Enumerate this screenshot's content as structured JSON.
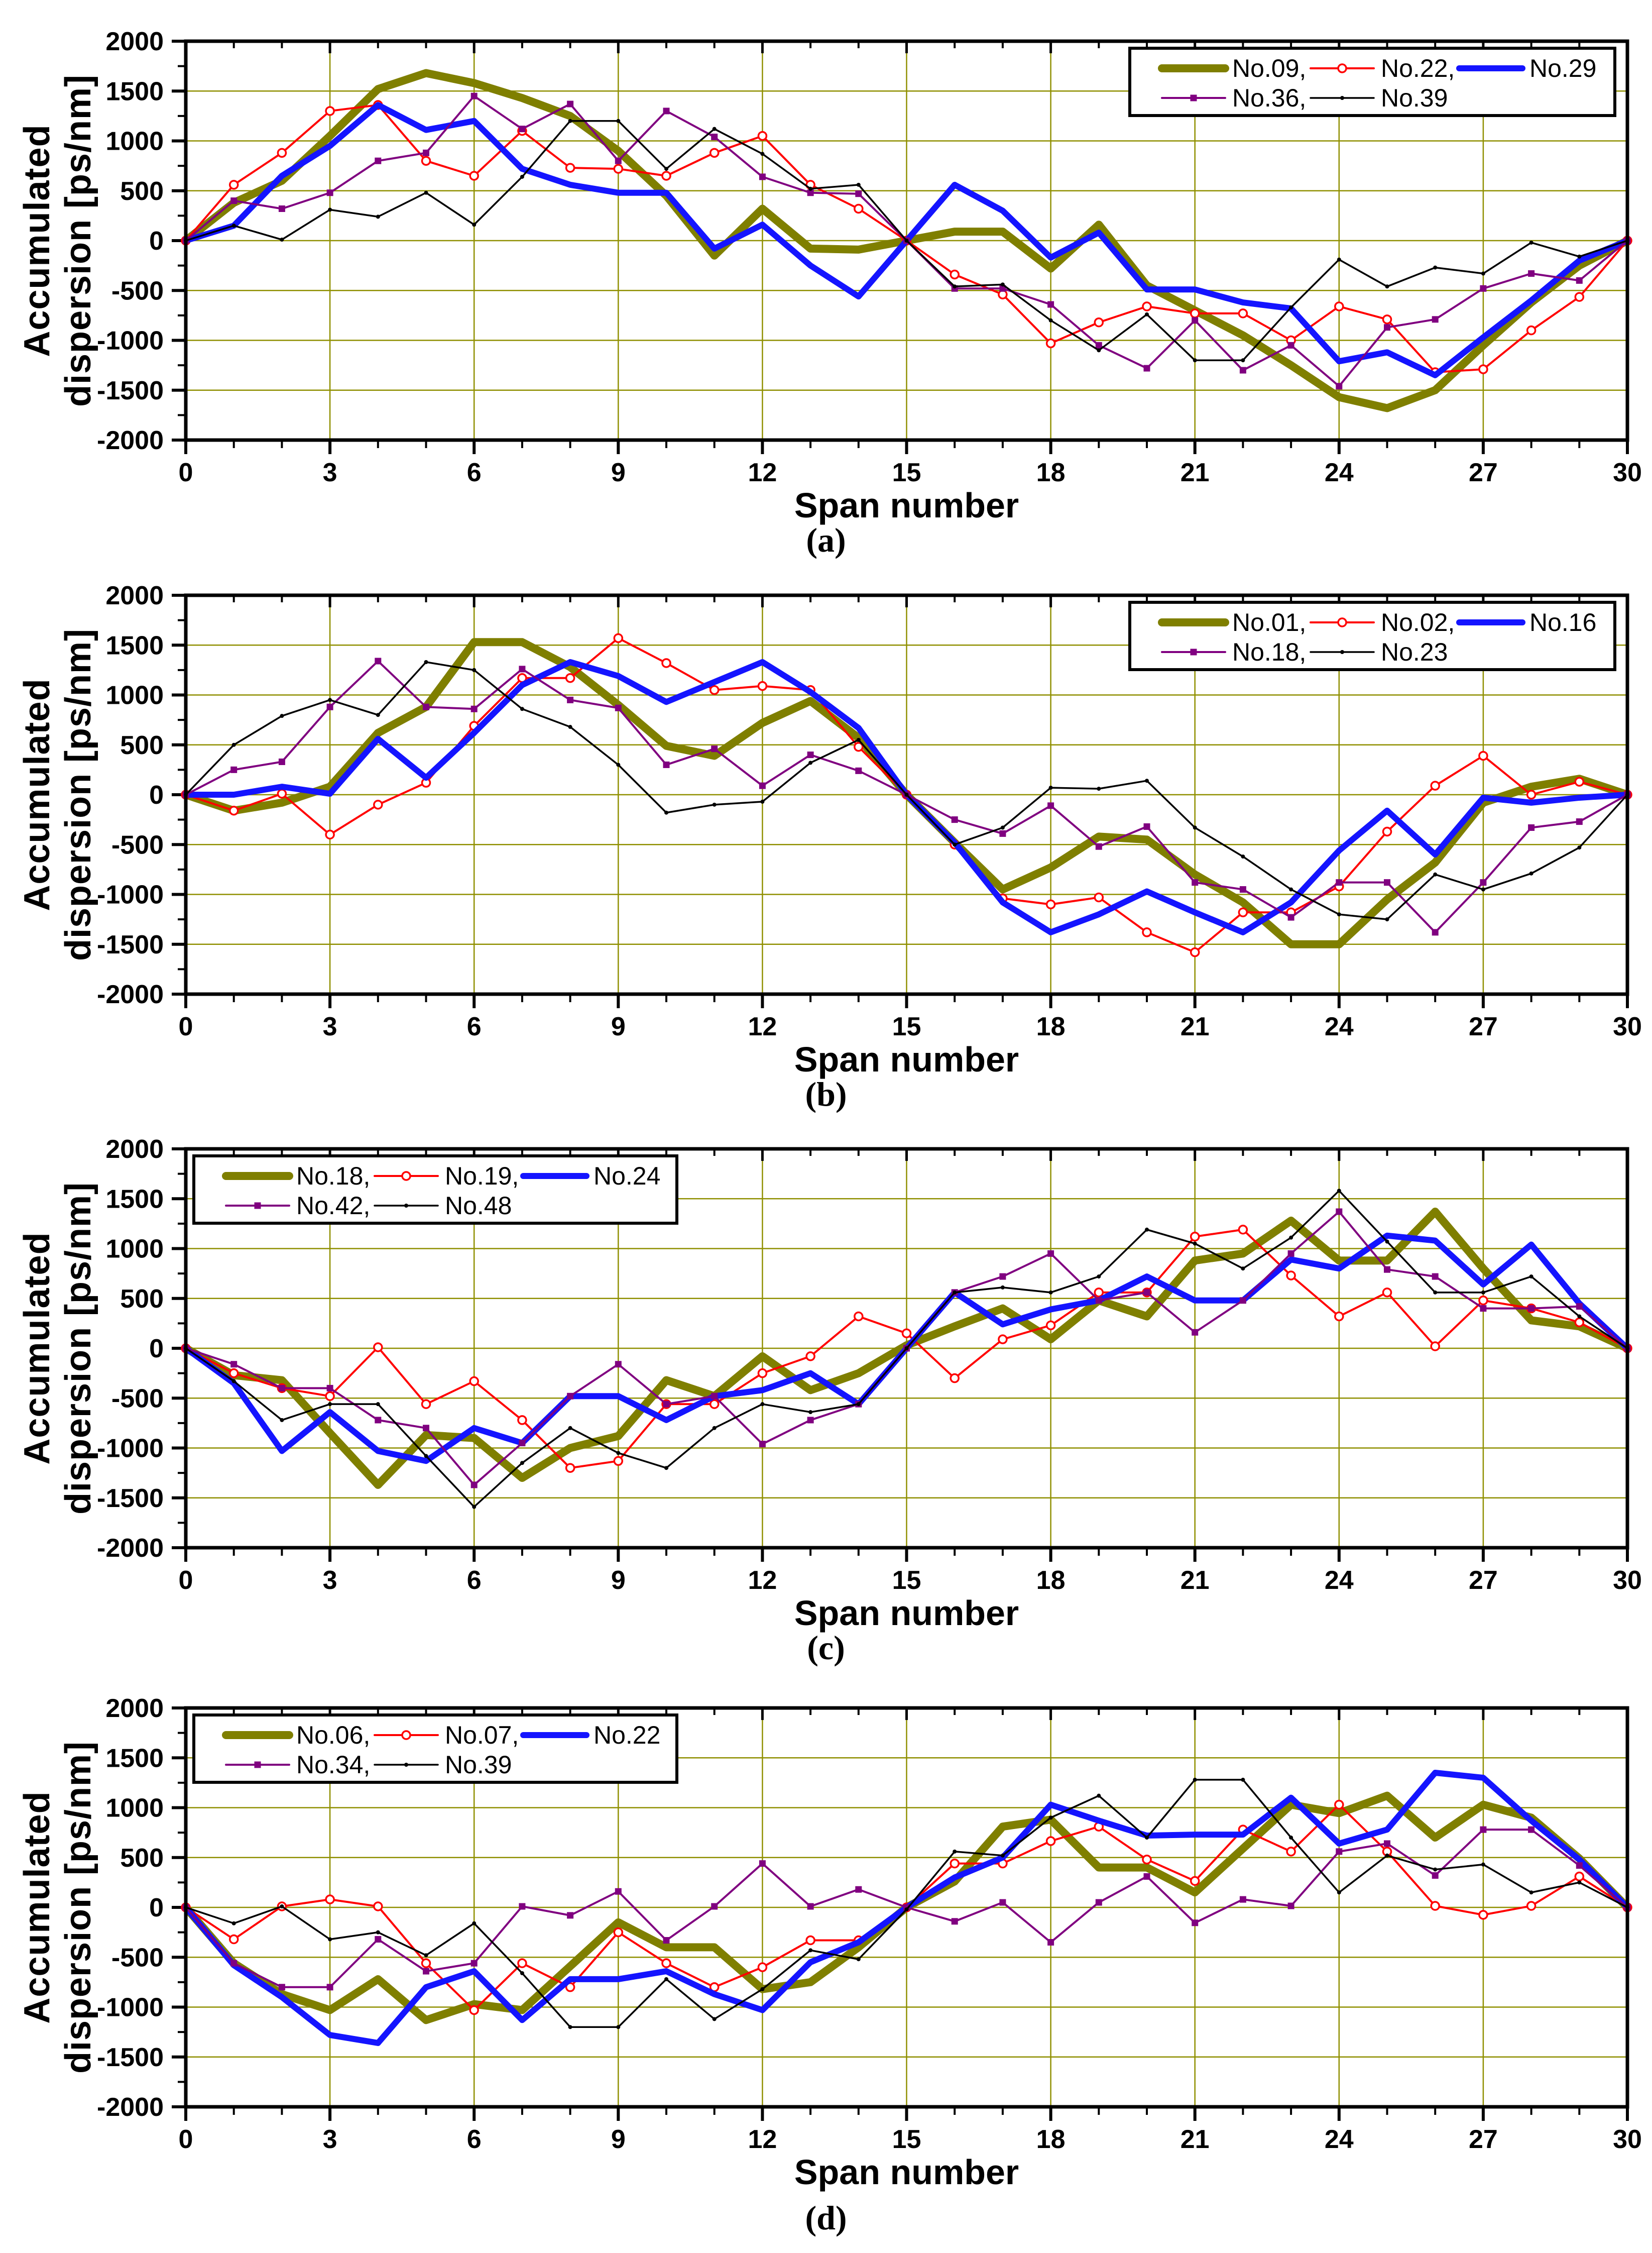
{
  "figure": {
    "ylabel_line1": "Accumulated",
    "ylabel_line2": "dispersion [ps/nm]",
    "xlabel": "Span number",
    "grid_color": "#8f8f00",
    "frame_color": "#000000",
    "background": "#ffffff"
  },
  "chart_data": [
    {
      "id": "a",
      "type": "line",
      "caption": "(a)",
      "xlabel": "Span number",
      "ylabel": "Accumulated dispersion [ps/nm]",
      "xlim": [
        0,
        30
      ],
      "ylim": [
        -2000,
        2000
      ],
      "x_major_step": 3,
      "y_tick_step": 500,
      "grid": true,
      "legend_position": "top-right",
      "x": [
        0,
        1,
        2,
        3,
        4,
        5,
        6,
        7,
        8,
        9,
        10,
        11,
        12,
        13,
        14,
        15,
        16,
        17,
        18,
        19,
        20,
        21,
        22,
        23,
        24,
        25,
        26,
        27,
        28,
        29,
        30
      ],
      "series": [
        {
          "name": "No.09",
          "label": "No.09,",
          "color": "#7f7f00",
          "width": 16,
          "marker": "none",
          "values": [
            0,
            380,
            600,
            1050,
            1520,
            1680,
            1580,
            1430,
            1250,
            900,
            450,
            -150,
            320,
            -80,
            -90,
            0,
            90,
            90,
            -280,
            160,
            -450,
            -700,
            -950,
            -1250,
            -1570,
            -1680,
            -1500,
            -1050,
            -620,
            -250,
            0
          ]
        },
        {
          "name": "No.22",
          "label": "No.22,",
          "color": "#ff0000",
          "width": 4,
          "marker": "open-circle",
          "values": [
            0,
            560,
            880,
            1300,
            1360,
            800,
            650,
            1100,
            730,
            720,
            650,
            880,
            1050,
            560,
            320,
            0,
            -340,
            -540,
            -1030,
            -820,
            -660,
            -730,
            -730,
            -1000,
            -660,
            -790,
            -1320,
            -1290,
            -900,
            -565,
            0
          ]
        },
        {
          "name": "No.29",
          "label": "No.29",
          "color": "#1414ff",
          "width": 12,
          "marker": "none",
          "values": [
            0,
            150,
            650,
            950,
            1360,
            1110,
            1200,
            720,
            560,
            480,
            480,
            -80,
            160,
            -250,
            -560,
            0,
            560,
            300,
            -170,
            80,
            -490,
            -490,
            -620,
            -680,
            -1210,
            -1120,
            -1350,
            -970,
            -600,
            -200,
            0
          ]
        },
        {
          "name": "No.36",
          "label": "No.36,",
          "color": "#800080",
          "width": 4,
          "marker": "filled-square",
          "values": [
            0,
            400,
            320,
            480,
            800,
            880,
            1450,
            1120,
            1370,
            800,
            1300,
            1040,
            640,
            480,
            470,
            0,
            -480,
            -480,
            -640,
            -1050,
            -1280,
            -800,
            -1300,
            -1050,
            -1460,
            -870,
            -790,
            -480,
            -330,
            -400,
            0
          ]
        },
        {
          "name": "No.39",
          "label": "No.39",
          "color": "#000000",
          "width": 3.5,
          "marker": "dot",
          "values": [
            0,
            150,
            10,
            310,
            240,
            480,
            160,
            640,
            1200,
            1200,
            720,
            1120,
            870,
            520,
            560,
            0,
            -460,
            -440,
            -800,
            -1100,
            -740,
            -1200,
            -1200,
            -670,
            -190,
            -460,
            -270,
            -330,
            -20,
            -160,
            0
          ]
        }
      ]
    },
    {
      "id": "b",
      "type": "line",
      "caption": "(b)",
      "xlabel": "Span number",
      "ylabel": "Accumulated dispersion [ps/nm]",
      "xlim": [
        0,
        30
      ],
      "ylim": [
        -2000,
        2000
      ],
      "x_major_step": 3,
      "y_tick_step": 500,
      "grid": true,
      "legend_position": "top-right",
      "x": [
        0,
        1,
        2,
        3,
        4,
        5,
        6,
        7,
        8,
        9,
        10,
        11,
        12,
        13,
        14,
        15,
        16,
        17,
        18,
        19,
        20,
        21,
        22,
        23,
        24,
        25,
        26,
        27,
        28,
        29,
        30
      ],
      "series": [
        {
          "name": "No.01",
          "label": "No.01,",
          "color": "#7f7f00",
          "width": 16,
          "marker": "none",
          "values": [
            0,
            -160,
            -80,
            80,
            620,
            880,
            1530,
            1530,
            1280,
            900,
            490,
            390,
            720,
            940,
            570,
            0,
            -480,
            -950,
            -730,
            -420,
            -450,
            -800,
            -1080,
            -1500,
            -1500,
            -1050,
            -680,
            -80,
            80,
            160,
            0
          ]
        },
        {
          "name": "No.02",
          "label": "No.02,",
          "color": "#ff0000",
          "width": 4,
          "marker": "open-circle",
          "values": [
            0,
            -160,
            10,
            -400,
            -100,
            120,
            690,
            1170,
            1170,
            1570,
            1320,
            1050,
            1090,
            1050,
            480,
            0,
            -500,
            -1040,
            -1100,
            -1030,
            -1380,
            -1580,
            -1180,
            -1180,
            -920,
            -370,
            90,
            390,
            0,
            130,
            0
          ]
        },
        {
          "name": "No.16",
          "label": "No.16",
          "color": "#1414ff",
          "width": 12,
          "marker": "none",
          "values": [
            0,
            0,
            80,
            10,
            560,
            170,
            620,
            1100,
            1330,
            1190,
            930,
            1130,
            1330,
            1030,
            670,
            0,
            -480,
            -1080,
            -1380,
            -1200,
            -970,
            -1180,
            -1380,
            -1080,
            -560,
            -160,
            -600,
            -30,
            -80,
            -30,
            0
          ]
        },
        {
          "name": "No.18",
          "label": "No.18,",
          "color": "#800080",
          "width": 4,
          "marker": "filled-square",
          "values": [
            0,
            250,
            330,
            880,
            1340,
            880,
            860,
            1260,
            950,
            870,
            300,
            460,
            90,
            400,
            240,
            0,
            -250,
            -390,
            -110,
            -520,
            -320,
            -880,
            -950,
            -1230,
            -880,
            -880,
            -1380,
            -880,
            -330,
            -270,
            0
          ]
        },
        {
          "name": "No.23",
          "label": "No.23",
          "color": "#000000",
          "width": 3.5,
          "marker": "dot",
          "values": [
            0,
            500,
            790,
            950,
            800,
            1330,
            1250,
            860,
            680,
            300,
            -180,
            -100,
            -70,
            320,
            550,
            0,
            -500,
            -330,
            70,
            60,
            140,
            -330,
            -620,
            -950,
            -1200,
            -1250,
            -800,
            -950,
            -790,
            -530,
            0
          ]
        }
      ]
    },
    {
      "id": "c",
      "type": "line",
      "caption": "(c)",
      "xlabel": "Span number",
      "ylabel": "Accumulated dispersion [ps/nm]",
      "xlim": [
        0,
        30
      ],
      "ylim": [
        -2000,
        2000
      ],
      "x_major_step": 3,
      "y_tick_step": 500,
      "grid": true,
      "legend_position": "top-left",
      "x": [
        0,
        1,
        2,
        3,
        4,
        5,
        6,
        7,
        8,
        9,
        10,
        11,
        12,
        13,
        14,
        15,
        16,
        17,
        18,
        19,
        20,
        21,
        22,
        23,
        24,
        25,
        26,
        27,
        28,
        29,
        30
      ],
      "series": [
        {
          "name": "No.18",
          "label": "No.18,",
          "color": "#7f7f00",
          "width": 16,
          "marker": "none",
          "values": [
            0,
            -270,
            -320,
            -850,
            -1370,
            -870,
            -900,
            -1300,
            -1000,
            -880,
            -320,
            -480,
            -80,
            -420,
            -250,
            30,
            220,
            400,
            90,
            480,
            320,
            880,
            950,
            1280,
            880,
            880,
            1370,
            800,
            280,
            220,
            0
          ]
        },
        {
          "name": "No.19",
          "label": "No.19,",
          "color": "#ff0000",
          "width": 4,
          "marker": "open-circle",
          "values": [
            0,
            -250,
            -400,
            -480,
            10,
            -560,
            -330,
            -720,
            -1200,
            -1130,
            -560,
            -560,
            -250,
            -80,
            320,
            150,
            -300,
            90,
            230,
            560,
            560,
            1120,
            1190,
            730,
            320,
            560,
            20,
            480,
            400,
            260,
            0
          ]
        },
        {
          "name": "No.24",
          "label": "No.24",
          "color": "#1414ff",
          "width": 12,
          "marker": "none",
          "values": [
            0,
            -350,
            -1030,
            -640,
            -1030,
            -1130,
            -800,
            -950,
            -480,
            -480,
            -720,
            -480,
            -420,
            -250,
            -560,
            0,
            560,
            240,
            390,
            480,
            720,
            480,
            480,
            890,
            800,
            1130,
            1080,
            640,
            1040,
            450,
            0
          ]
        },
        {
          "name": "No.42",
          "label": "No.42,",
          "color": "#800080",
          "width": 4,
          "marker": "filled-square",
          "values": [
            0,
            -160,
            -400,
            -400,
            -720,
            -800,
            -1370,
            -950,
            -480,
            -160,
            -560,
            -480,
            -960,
            -720,
            -560,
            0,
            560,
            720,
            950,
            480,
            560,
            160,
            480,
            950,
            1370,
            790,
            720,
            400,
            400,
            420,
            0
          ]
        },
        {
          "name": "No.48",
          "label": "No.48",
          "color": "#000000",
          "width": 3.5,
          "marker": "dot",
          "values": [
            0,
            -330,
            -720,
            -560,
            -560,
            -1080,
            -1590,
            -1150,
            -800,
            -1050,
            -1200,
            -800,
            -560,
            -640,
            -560,
            0,
            560,
            610,
            560,
            720,
            1190,
            1050,
            800,
            1110,
            1580,
            1070,
            560,
            560,
            720,
            320,
            0
          ]
        }
      ]
    },
    {
      "id": "d",
      "type": "line",
      "caption": "(d)",
      "xlabel": "Span number",
      "ylabel": "Accumulated dispersion [ps/nm]",
      "xlim": [
        0,
        30
      ],
      "ylim": [
        -2000,
        2000
      ],
      "x_major_step": 3,
      "y_tick_step": 500,
      "grid": true,
      "legend_position": "top-left",
      "x": [
        0,
        1,
        2,
        3,
        4,
        5,
        6,
        7,
        8,
        9,
        10,
        11,
        12,
        13,
        14,
        15,
        16,
        17,
        18,
        19,
        20,
        21,
        22,
        23,
        24,
        25,
        26,
        27,
        28,
        29,
        30
      ],
      "series": [
        {
          "name": "No.06",
          "label": "No.06,",
          "color": "#7f7f00",
          "width": 16,
          "marker": "none",
          "values": [
            0,
            -560,
            -870,
            -1030,
            -720,
            -1130,
            -970,
            -1030,
            -590,
            -150,
            -400,
            -400,
            -820,
            -750,
            -400,
            0,
            260,
            810,
            880,
            400,
            400,
            150,
            590,
            1030,
            945,
            1120,
            700,
            1030,
            900,
            490,
            0
          ]
        },
        {
          "name": "No.07",
          "label": "No.07,",
          "color": "#ff0000",
          "width": 4,
          "marker": "open-circle",
          "values": [
            0,
            -320,
            10,
            80,
            10,
            -560,
            -1030,
            -560,
            -800,
            -250,
            -560,
            -800,
            -600,
            -330,
            -330,
            0,
            440,
            440,
            665,
            810,
            480,
            265,
            780,
            560,
            1030,
            560,
            15,
            -75,
            15,
            310,
            0
          ]
        },
        {
          "name": "No.22",
          "label": "No.22",
          "color": "#1414ff",
          "width": 12,
          "marker": "none",
          "values": [
            0,
            -580,
            -900,
            -1280,
            -1360,
            -800,
            -640,
            -1130,
            -720,
            -720,
            -640,
            -870,
            -1030,
            -550,
            -350,
            0,
            300,
            500,
            1030,
            870,
            720,
            730,
            730,
            1100,
            640,
            780,
            1350,
            1300,
            870,
            480,
            0
          ]
        },
        {
          "name": "No.34",
          "label": "No.34,",
          "color": "#800080",
          "width": 4,
          "marker": "filled-square",
          "values": [
            0,
            -560,
            -800,
            -800,
            -320,
            -640,
            -560,
            10,
            -80,
            160,
            -330,
            10,
            440,
            10,
            180,
            0,
            -140,
            50,
            -350,
            50,
            310,
            -155,
            80,
            15,
            560,
            640,
            320,
            780,
            780,
            420,
            0
          ]
        },
        {
          "name": "No.39",
          "label": "No.39",
          "color": "#000000",
          "width": 3.5,
          "marker": "dot",
          "values": [
            0,
            -160,
            10,
            -320,
            -250,
            -480,
            -160,
            -660,
            -1200,
            -1200,
            -720,
            -1120,
            -820,
            -430,
            -520,
            -20,
            560,
            520,
            900,
            1120,
            700,
            1280,
            1280,
            700,
            150,
            520,
            380,
            430,
            150,
            250,
            0
          ]
        }
      ]
    }
  ]
}
